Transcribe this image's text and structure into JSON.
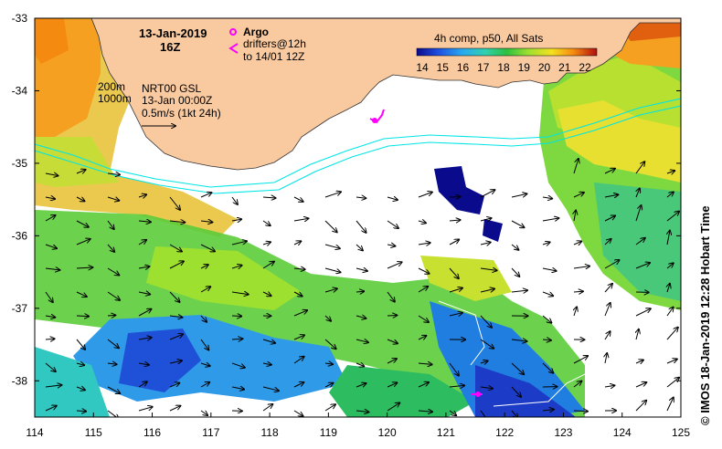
{
  "date_line": "13-Jan-2019",
  "time_line": "16Z",
  "argo_label": "Argo",
  "drifters_label": "drifters@12h",
  "drifters_to": "to 14/01 12Z",
  "isobath_200": "200m",
  "isobath_1000": "1000m",
  "current_source": "NRT00 GSL",
  "current_time": "13-Jan 00:00Z",
  "scale_vector": "0.5m/s (1kt 24h)",
  "colorbar_title": "4h comp, p50, All Sats",
  "colorbar_ticks": [
    "14",
    "15",
    "16",
    "17",
    "18",
    "19",
    "20",
    "21",
    "22"
  ],
  "lon_ticks": [
    "114",
    "115",
    "116",
    "117",
    "118",
    "119",
    "120",
    "121",
    "122",
    "123",
    "124",
    "125"
  ],
  "lat_ticks": [
    "-33",
    "-34",
    "-35",
    "-36",
    "-37",
    "-38"
  ],
  "credit": "© IMOS 18-Jan-2019 12:28 Hobart Time",
  "colors": {
    "land": "#f9c9a0",
    "shelf_contour": "#00e5e5",
    "argo": "#ff00ff"
  },
  "chart_data": {
    "type": "heatmap",
    "title": "4h comp, p50, All Sats",
    "xlim": [
      114,
      125
    ],
    "ylim": [
      -38.5,
      -33
    ],
    "colorbar_range": [
      14,
      22.5
    ]
  }
}
